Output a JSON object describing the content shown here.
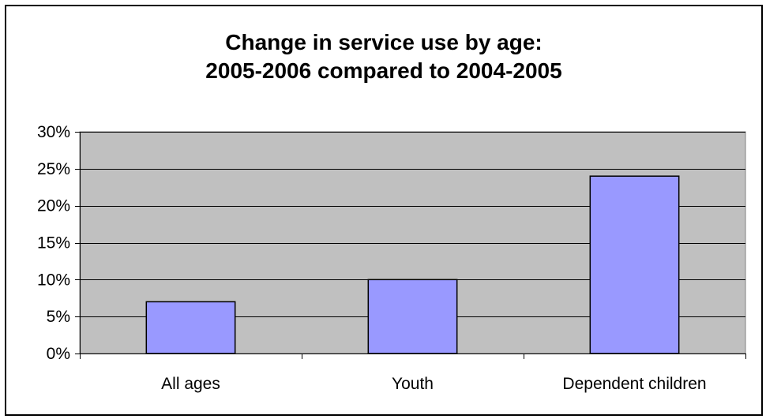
{
  "chart_data": {
    "type": "bar",
    "title_line1": "Change in service use by age:",
    "title_line2": "2005-2006 compared to 2004-2005",
    "categories": [
      "All ages",
      "Youth",
      "Dependent children"
    ],
    "values": [
      7,
      10,
      24
    ],
    "ylim": [
      0,
      30
    ],
    "yticks": [
      0,
      5,
      10,
      15,
      20,
      25,
      30
    ],
    "ytick_labels": [
      "0%",
      "5%",
      "10%",
      "15%",
      "20%",
      "25%",
      "30%"
    ],
    "grid": true,
    "legend": "none",
    "colors": {
      "bar_fill": "#9999FF",
      "plot_bg": "#C0C0C0",
      "outline": "#000000"
    }
  }
}
